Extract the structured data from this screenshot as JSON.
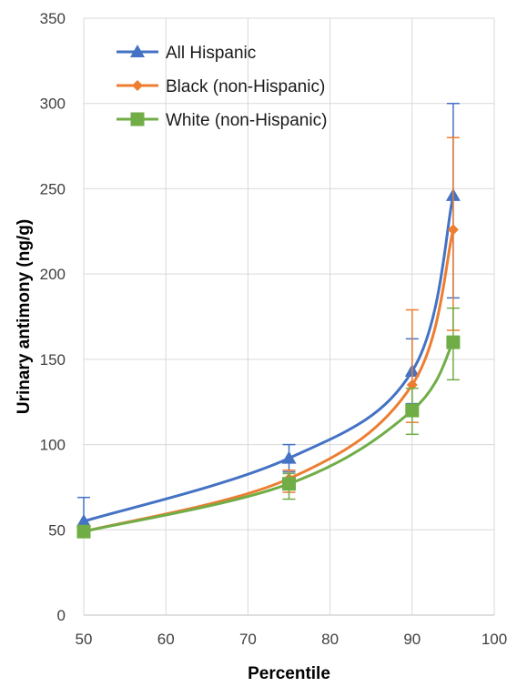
{
  "chart_data": {
    "type": "line",
    "xlabel": "Percentile",
    "ylabel": "Urinary antimony  (ng/g)",
    "xlim": [
      50,
      100
    ],
    "ylim": [
      0,
      350
    ],
    "x_ticks": [
      50,
      60,
      70,
      80,
      90,
      100
    ],
    "y_ticks": [
      0,
      50,
      100,
      150,
      200,
      250,
      300,
      350
    ],
    "x_tick_labels": [
      "50",
      "60",
      "70",
      "80",
      "90",
      "100"
    ],
    "y_tick_labels": [
      "0",
      "50",
      "100",
      "150",
      "200",
      "250",
      "300",
      "350"
    ],
    "grid": true,
    "legend_position": "top-left",
    "series": [
      {
        "name": "All Hispanic",
        "color": "#4472C4",
        "marker": "triangle",
        "x": [
          50,
          75,
          90,
          95
        ],
        "y": [
          55,
          92,
          143,
          246
        ],
        "err_low": [
          49,
          84,
          124,
          186
        ],
        "err_high": [
          69,
          100,
          162,
          300
        ]
      },
      {
        "name": "Black (non-Hispanic)",
        "color": "#ED7D31",
        "marker": "diamond",
        "x": [
          50,
          75,
          90,
          95
        ],
        "y": [
          49,
          80,
          135,
          226
        ],
        "err_low": [
          46,
          72,
          113,
          167
        ],
        "err_high": [
          52,
          85,
          179,
          280
        ]
      },
      {
        "name": "White (non-Hispanic)",
        "color": "#70AD47",
        "marker": "square",
        "x": [
          50,
          75,
          90,
          95
        ],
        "y": [
          49,
          77,
          120,
          160
        ],
        "err_low": [
          47,
          68,
          106,
          138
        ],
        "err_high": [
          50,
          83,
          133,
          180
        ]
      }
    ]
  }
}
